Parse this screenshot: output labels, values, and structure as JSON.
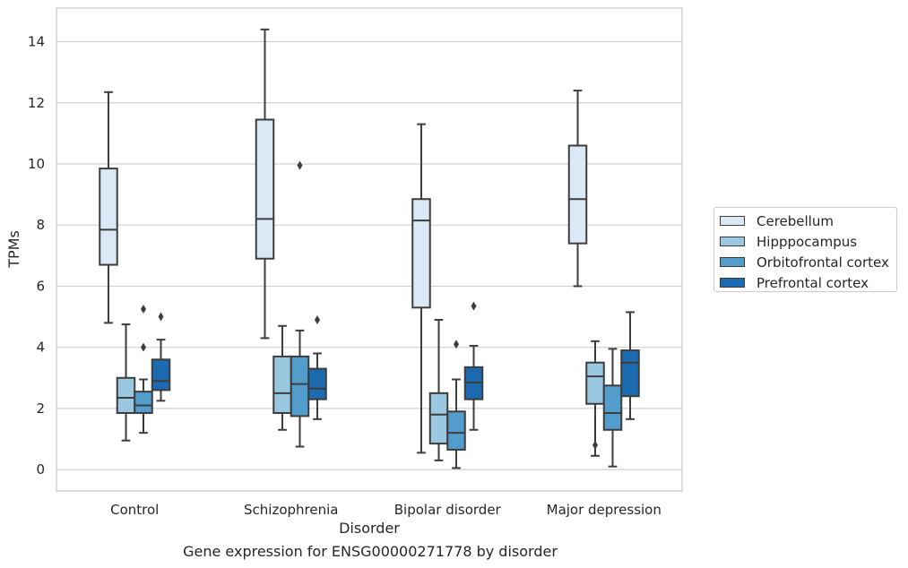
{
  "chart_data": {
    "type": "box",
    "xlabel": "Disorder",
    "ylabel": "TPMs",
    "ylim": [
      -0.7,
      15.1
    ],
    "yticks": [
      0,
      2,
      4,
      6,
      8,
      10,
      12,
      14
    ],
    "grid": "horizontal",
    "legend_position": "right",
    "categories": [
      "Control",
      "Schizophrenia",
      "Bipolar disorder",
      "Major depression"
    ],
    "series": [
      {
        "name": "Cerebellum",
        "color": "#dbe9f6",
        "boxes": [
          {
            "whisker_low": 4.8,
            "q1": 6.7,
            "median": 7.85,
            "q3": 9.85,
            "whisker_high": 12.35,
            "outliers": []
          },
          {
            "whisker_low": 4.3,
            "q1": 6.9,
            "median": 8.2,
            "q3": 11.45,
            "whisker_high": 14.4,
            "outliers": []
          },
          {
            "whisker_low": 0.55,
            "q1": 5.3,
            "median": 8.15,
            "q3": 8.85,
            "whisker_high": 11.3,
            "outliers": []
          },
          {
            "whisker_low": 6.0,
            "q1": 7.4,
            "median": 8.85,
            "q3": 10.6,
            "whisker_high": 12.4,
            "outliers": []
          }
        ]
      },
      {
        "name": "Hipppocampus",
        "color": "#9ac8e0",
        "boxes": [
          {
            "whisker_low": 0.95,
            "q1": 1.85,
            "median": 2.35,
            "q3": 3.0,
            "whisker_high": 4.75,
            "outliers": []
          },
          {
            "whisker_low": 1.3,
            "q1": 1.85,
            "median": 2.5,
            "q3": 3.7,
            "whisker_high": 4.7,
            "outliers": []
          },
          {
            "whisker_low": 0.3,
            "q1": 0.85,
            "median": 1.8,
            "q3": 2.5,
            "whisker_high": 4.9,
            "outliers": []
          },
          {
            "whisker_low": 0.45,
            "q1": 2.15,
            "median": 3.05,
            "q3": 3.5,
            "whisker_high": 4.2,
            "outliers": [
              0.8
            ]
          }
        ]
      },
      {
        "name": "Orbitofrontal cortex",
        "color": "#529dcc",
        "boxes": [
          {
            "whisker_low": 1.2,
            "q1": 1.85,
            "median": 2.1,
            "q3": 2.55,
            "whisker_high": 2.95,
            "outliers": [
              4.0,
              5.25
            ]
          },
          {
            "whisker_low": 0.75,
            "q1": 1.75,
            "median": 2.8,
            "q3": 3.7,
            "whisker_high": 4.55,
            "outliers": [
              9.95
            ]
          },
          {
            "whisker_low": 0.05,
            "q1": 0.65,
            "median": 1.2,
            "q3": 1.9,
            "whisker_high": 2.95,
            "outliers": [
              4.1
            ]
          },
          {
            "whisker_low": 0.1,
            "q1": 1.3,
            "median": 1.85,
            "q3": 2.75,
            "whisker_high": 3.95,
            "outliers": []
          }
        ]
      },
      {
        "name": "Prefrontal cortex",
        "color": "#1c6aaf",
        "boxes": [
          {
            "whisker_low": 2.25,
            "q1": 2.6,
            "median": 2.9,
            "q3": 3.6,
            "whisker_high": 4.25,
            "outliers": [
              5.0
            ]
          },
          {
            "whisker_low": 1.65,
            "q1": 2.3,
            "median": 2.65,
            "q3": 3.3,
            "whisker_high": 3.8,
            "outliers": [
              4.9
            ]
          },
          {
            "whisker_low": 1.3,
            "q1": 2.3,
            "median": 2.85,
            "q3": 3.35,
            "whisker_high": 4.05,
            "outliers": [
              5.35
            ]
          },
          {
            "whisker_low": 1.65,
            "q1": 2.4,
            "median": 3.5,
            "q3": 3.9,
            "whisker_high": 5.15,
            "outliers": []
          }
        ]
      }
    ]
  },
  "caption": "Gene expression for ENSG00000271778 by disorder"
}
